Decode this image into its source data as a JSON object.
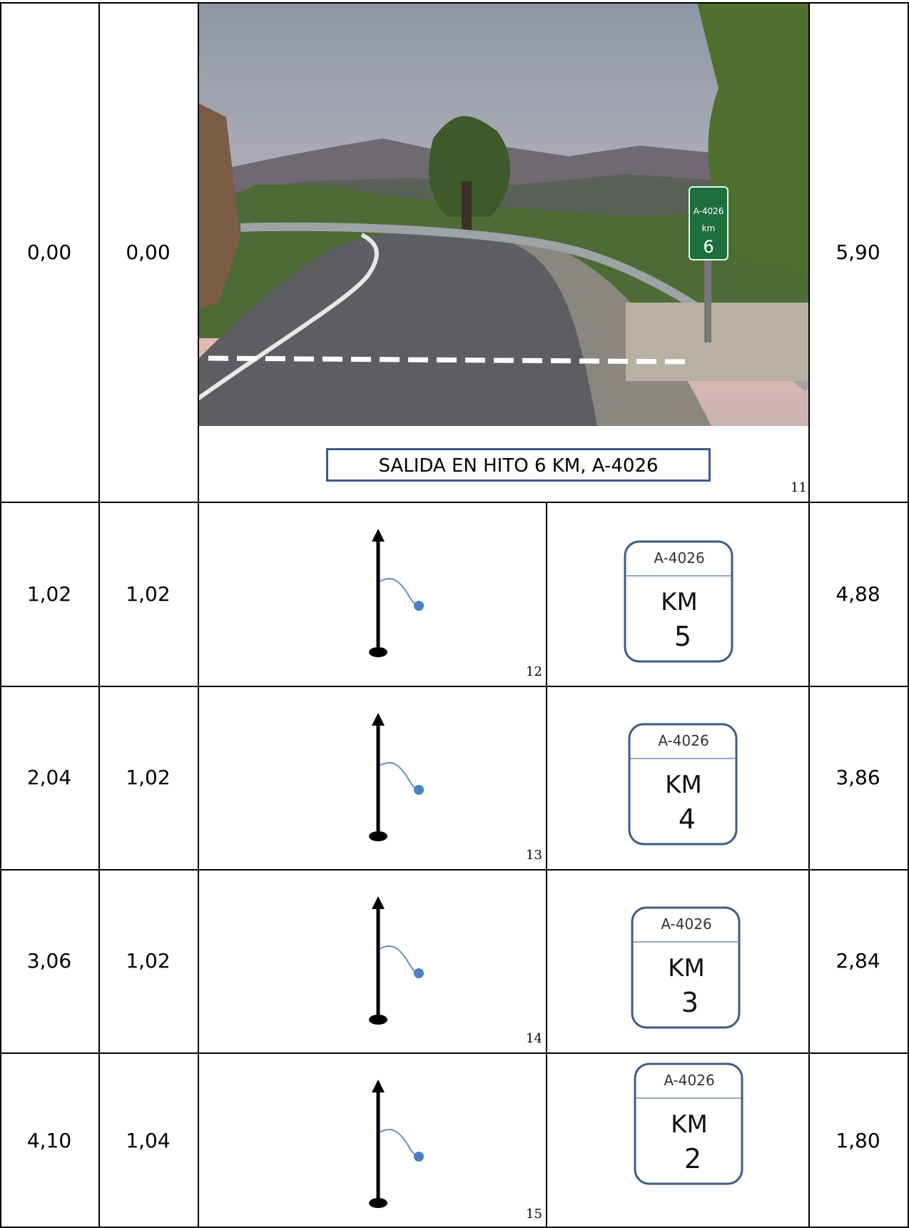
{
  "rows": [
    {
      "total": "0,00",
      "partial": "0,00",
      "remaining": "5,90",
      "note": "11",
      "photo": {
        "sign_road": "A-4026",
        "sign_unit": "km",
        "sign_km": "6"
      },
      "caption": "SALIDA EN HITO 6 KM, A-4026"
    },
    {
      "total": "1,02",
      "partial": "1,02",
      "remaining": "4,88",
      "note": "12",
      "sign": {
        "road": "A-4026",
        "unit": "KM",
        "km": "5"
      }
    },
    {
      "total": "2,04",
      "partial": "1,02",
      "remaining": "3,86",
      "note": "13",
      "sign": {
        "road": "A-4026",
        "unit": "KM",
        "km": "4"
      }
    },
    {
      "total": "3,06",
      "partial": "1,02",
      "remaining": "2,84",
      "note": "14",
      "sign": {
        "road": "A-4026",
        "unit": "KM",
        "km": "3"
      }
    },
    {
      "total": "4,10",
      "partial": "1,04",
      "remaining": "1,80",
      "note": "15",
      "sign": {
        "road": "A-4026",
        "unit": "KM",
        "km": "2"
      }
    }
  ]
}
